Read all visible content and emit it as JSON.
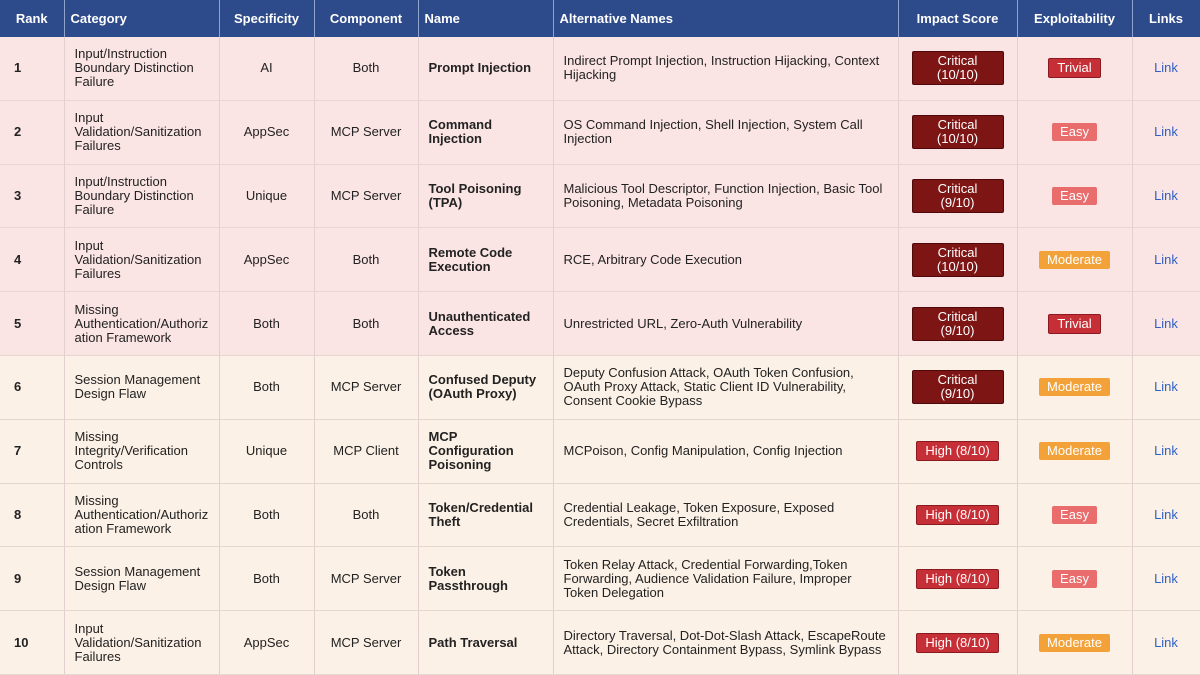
{
  "table": {
    "columns": [
      "Rank",
      "Category",
      "Specificity",
      "Component",
      "Name",
      "Alternative Names",
      "Impact Score",
      "Exploitability",
      "Links"
    ],
    "rows": [
      [
        "1",
        "Input/Instruction Boundary Distinction Failure",
        "AI",
        "Both",
        "Prompt Injection",
        "Indirect Prompt Injection, Instruction Hijacking, Context Hijacking",
        "Critical (10/10)",
        "Trivial",
        "Link"
      ],
      [
        "2",
        "Input Validation/Sanitization Failures",
        "AppSec",
        "MCP Server",
        "Command Injection",
        "OS Command Injection, Shell Injection, System Call Injection",
        "Critical (10/10)",
        "Easy",
        "Link"
      ],
      [
        "3",
        "Input/Instruction Boundary Distinction Failure",
        "Unique",
        "MCP Server",
        "Tool Poisoning (TPA)",
        "Malicious Tool Descriptor, Function Injection, Basic Tool Poisoning, Metadata Poisoning",
        "Critical (9/10)",
        "Easy",
        "Link"
      ],
      [
        "4",
        "Input Validation/Sanitization Failures",
        "AppSec",
        "Both",
        "Remote Code Execution",
        "RCE, Arbitrary Code Execution",
        "Critical (10/10)",
        "Moderate",
        "Link"
      ],
      [
        "5",
        "Missing Authentication/Authorization Framework",
        "Both",
        "Both",
        "Unauthenticated Access",
        "Unrestricted URL, Zero-Auth Vulnerability",
        "Critical (9/10)",
        "Trivial",
        "Link"
      ],
      [
        "6",
        "Session Management Design Flaw",
        "Both",
        "MCP Server",
        "Confused Deputy (OAuth Proxy)",
        "Deputy Confusion Attack, OAuth Token Confusion, OAuth Proxy Attack, Static Client ID Vulnerability, Consent Cookie Bypass",
        "Critical (9/10)",
        "Moderate",
        "Link"
      ],
      [
        "7",
        "Missing Integrity/Verification Controls",
        "Unique",
        "MCP Client",
        "MCP Configuration Poisoning",
        "MCPoison, Config Manipulation, Config Injection",
        "High (8/10)",
        "Moderate",
        "Link"
      ],
      [
        "8",
        "Missing Authentication/Authorization Framework",
        "Both",
        "Both",
        "Token/Credential Theft",
        "Credential Leakage, Token Exposure, Exposed Credentials, Secret Exfiltration",
        "High (8/10)",
        "Easy",
        "Link"
      ],
      [
        "9",
        "Session Management Design Flaw",
        "Both",
        "MCP Server",
        "Token Passthrough",
        "Token Relay Attack, Credential Forwarding,Token Forwarding, Audience Validation Failure, Improper Token Delegation",
        "High (8/10)",
        "Easy",
        "Link"
      ],
      [
        "10",
        "Input Validation/Sanitization Failures",
        "AppSec",
        "MCP Server",
        "Path Traversal",
        "Directory Traversal, Dot-Dot-Slash Attack, EscapeRoute Attack, Directory Containment Bypass, Symlink Bypass",
        "High (8/10)",
        "Moderate",
        "Link"
      ]
    ]
  }
}
